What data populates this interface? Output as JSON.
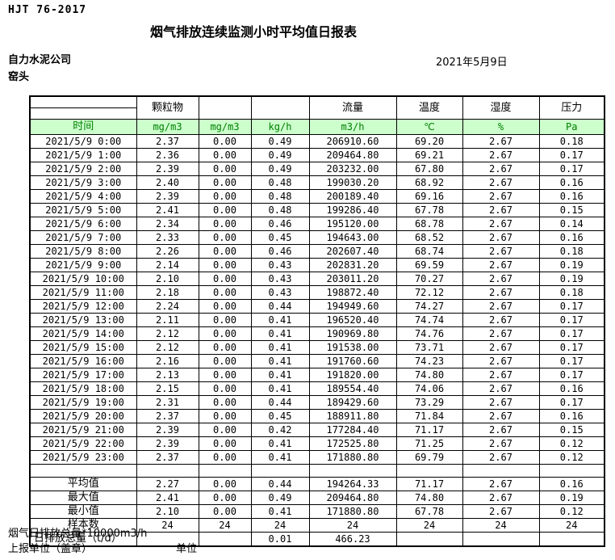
{
  "page": {
    "standard_code": "HJT  76-2017",
    "title": "烟气排放连续监测小时平均值日报表",
    "company": "自力水泥公司",
    "location": "窑头",
    "date": "2021年5月9日"
  },
  "table": {
    "group_headers": [
      "",
      "颗粒物",
      "",
      "",
      "流量",
      "温度",
      "湿度",
      "压力"
    ],
    "unit_row": {
      "time_label": "时间",
      "units": [
        "mg/m3",
        "mg/m3",
        "kg/h",
        "m3/h",
        "℃",
        "%",
        "Pa"
      ]
    },
    "rows": [
      {
        "time": "2021/5/9 0:00",
        "values": [
          "2.37",
          "0.00",
          "0.49",
          "206910.60",
          "69.20",
          "2.67",
          "0.18"
        ]
      },
      {
        "time": "2021/5/9 1:00",
        "values": [
          "2.36",
          "0.00",
          "0.49",
          "209464.80",
          "69.21",
          "2.67",
          "0.17"
        ]
      },
      {
        "time": "2021/5/9 2:00",
        "values": [
          "2.39",
          "0.00",
          "0.49",
          "203232.00",
          "67.80",
          "2.67",
          "0.17"
        ]
      },
      {
        "time": "2021/5/9 3:00",
        "values": [
          "2.40",
          "0.00",
          "0.48",
          "199030.20",
          "68.92",
          "2.67",
          "0.16"
        ]
      },
      {
        "time": "2021/5/9 4:00",
        "values": [
          "2.39",
          "0.00",
          "0.48",
          "200189.40",
          "69.16",
          "2.67",
          "0.16"
        ]
      },
      {
        "time": "2021/5/9 5:00",
        "values": [
          "2.41",
          "0.00",
          "0.48",
          "199286.40",
          "67.78",
          "2.67",
          "0.15"
        ]
      },
      {
        "time": "2021/5/9 6:00",
        "values": [
          "2.34",
          "0.00",
          "0.46",
          "195120.00",
          "68.78",
          "2.67",
          "0.14"
        ]
      },
      {
        "time": "2021/5/9 7:00",
        "values": [
          "2.33",
          "0.00",
          "0.45",
          "194643.00",
          "68.52",
          "2.67",
          "0.16"
        ]
      },
      {
        "time": "2021/5/9 8:00",
        "values": [
          "2.26",
          "0.00",
          "0.46",
          "202607.40",
          "68.74",
          "2.67",
          "0.18"
        ]
      },
      {
        "time": "2021/5/9 9:00",
        "values": [
          "2.14",
          "0.00",
          "0.43",
          "202831.20",
          "69.59",
          "2.67",
          "0.19"
        ]
      },
      {
        "time": "2021/5/9 10:00",
        "values": [
          "2.10",
          "0.00",
          "0.43",
          "203011.20",
          "70.27",
          "2.67",
          "0.19"
        ]
      },
      {
        "time": "2021/5/9 11:00",
        "values": [
          "2.18",
          "0.00",
          "0.43",
          "198872.40",
          "72.12",
          "2.67",
          "0.18"
        ]
      },
      {
        "time": "2021/5/9 12:00",
        "values": [
          "2.24",
          "0.00",
          "0.44",
          "194949.60",
          "74.27",
          "2.67",
          "0.17"
        ]
      },
      {
        "time": "2021/5/9 13:00",
        "values": [
          "2.11",
          "0.00",
          "0.41",
          "196520.40",
          "74.74",
          "2.67",
          "0.17"
        ]
      },
      {
        "time": "2021/5/9 14:00",
        "values": [
          "2.12",
          "0.00",
          "0.41",
          "190969.80",
          "74.76",
          "2.67",
          "0.17"
        ]
      },
      {
        "time": "2021/5/9 15:00",
        "values": [
          "2.12",
          "0.00",
          "0.41",
          "191538.00",
          "73.71",
          "2.67",
          "0.17"
        ]
      },
      {
        "time": "2021/5/9 16:00",
        "values": [
          "2.16",
          "0.00",
          "0.41",
          "191760.60",
          "74.23",
          "2.67",
          "0.17"
        ]
      },
      {
        "time": "2021/5/9 17:00",
        "values": [
          "2.13",
          "0.00",
          "0.41",
          "191820.00",
          "74.80",
          "2.67",
          "0.17"
        ]
      },
      {
        "time": "2021/5/9 18:00",
        "values": [
          "2.15",
          "0.00",
          "0.41",
          "189554.40",
          "74.06",
          "2.67",
          "0.16"
        ]
      },
      {
        "time": "2021/5/9 19:00",
        "values": [
          "2.31",
          "0.00",
          "0.44",
          "189429.60",
          "73.29",
          "2.67",
          "0.17"
        ]
      },
      {
        "time": "2021/5/9 20:00",
        "values": [
          "2.37",
          "0.00",
          "0.45",
          "188911.80",
          "71.84",
          "2.67",
          "0.16"
        ]
      },
      {
        "time": "2021/5/9 21:00",
        "values": [
          "2.39",
          "0.00",
          "0.42",
          "177284.40",
          "71.17",
          "2.67",
          "0.15"
        ]
      },
      {
        "time": "2021/5/9 22:00",
        "values": [
          "2.39",
          "0.00",
          "0.41",
          "172525.80",
          "71.25",
          "2.67",
          "0.12"
        ]
      },
      {
        "time": "2021/5/9 23:00",
        "values": [
          "2.37",
          "0.00",
          "0.41",
          "171880.80",
          "69.79",
          "2.67",
          "0.12"
        ]
      }
    ],
    "summary_rows": [
      {
        "label": "平均值",
        "align": "center",
        "values": [
          "2.27",
          "0.00",
          "0.44",
          "194264.33",
          "71.17",
          "2.67",
          "0.16"
        ]
      },
      {
        "label": "最大值",
        "align": "center",
        "values": [
          "2.41",
          "0.00",
          "0.49",
          "209464.80",
          "74.80",
          "2.67",
          "0.19"
        ]
      },
      {
        "label": "最小值",
        "align": "center",
        "values": [
          "2.10",
          "0.00",
          "0.41",
          "171880.80",
          "67.78",
          "2.67",
          "0.12"
        ]
      },
      {
        "label": "样本数",
        "align": "center",
        "values": [
          "24",
          "24",
          "24",
          "24",
          "24",
          "24",
          "24"
        ]
      },
      {
        "label": "日排放总量（t/d）",
        "align": "left",
        "values": [
          "",
          "",
          "0.01",
          "466.23",
          "",
          "",
          ""
        ]
      }
    ]
  },
  "footer": {
    "note": "烟气日排放总量*10000m3/h",
    "report_unit_label": "上报单位（盖章）",
    "unit_label": "单位"
  },
  "colors": {
    "unit_row_bg": "#ccffcc",
    "unit_row_text": "#008000",
    "border": "#000000"
  }
}
